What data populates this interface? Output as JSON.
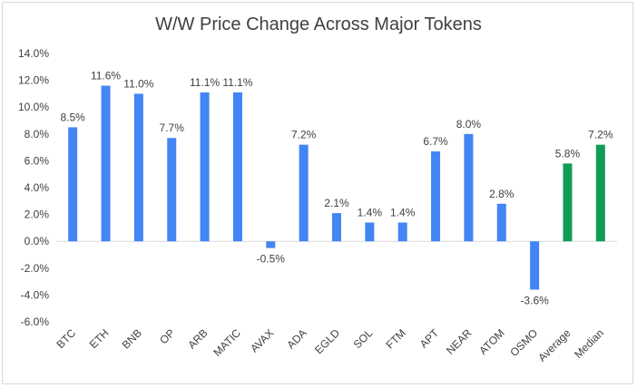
{
  "chart_data": {
    "type": "bar",
    "title": "W/W Price Change Across Major Tokens",
    "xlabel": "",
    "ylabel": "",
    "categories": [
      "BTC",
      "ETH",
      "BNB",
      "OP",
      "ARB",
      "MATIC",
      "AVAX",
      "ADA",
      "EGLD",
      "SOL",
      "FTM",
      "APT",
      "NEAR",
      "ATOM",
      "OSMO",
      "Average",
      "Median"
    ],
    "values": [
      8.5,
      11.6,
      11.0,
      7.7,
      11.1,
      11.1,
      -0.5,
      7.2,
      2.1,
      1.4,
      1.4,
      6.7,
      8.0,
      2.8,
      -3.6,
      5.8,
      7.2
    ],
    "data_labels": [
      "8.5%",
      "11.6%",
      "11.0%",
      "7.7%",
      "11.1%",
      "11.1%",
      "-0.5%",
      "7.2%",
      "2.1%",
      "1.4%",
      "1.4%",
      "6.7%",
      "8.0%",
      "2.8%",
      "-3.6%",
      "5.8%",
      "7.2%"
    ],
    "ylim": [
      -6,
      14
    ],
    "yticks": [
      -6,
      -4,
      -2,
      0,
      2,
      4,
      6,
      8,
      10,
      12,
      14
    ],
    "ytick_labels": [
      "-6.0%",
      "-4.0%",
      "-2.0%",
      "0.0%",
      "2.0%",
      "4.0%",
      "6.0%",
      "8.0%",
      "10.0%",
      "12.0%",
      "14.0%"
    ],
    "grid": false,
    "legend": "none",
    "colors": {
      "tokens": "#4285f4",
      "summary": "#0f9d58",
      "axis": "#d9d9d9",
      "text": "#404040"
    },
    "summary_categories": [
      "Average",
      "Median"
    ]
  }
}
